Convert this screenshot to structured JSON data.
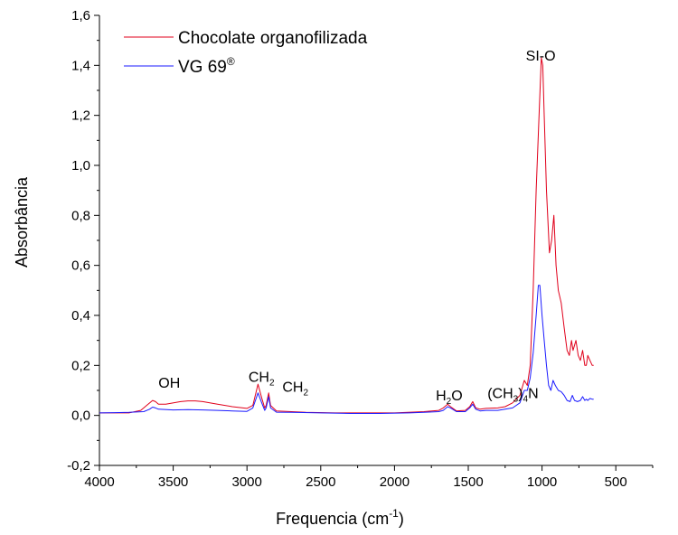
{
  "chart_data": {
    "type": "line",
    "xlabel": "Frequencia (cm",
    "xlabel_sup": "-1",
    "xlabel_close": ")",
    "ylabel": "Absorbância",
    "xlim": [
      4000,
      250
    ],
    "ylim": [
      -0.2,
      1.6
    ],
    "x_axis_reversed": true,
    "x_ticks": [
      4000,
      3500,
      3000,
      2500,
      2000,
      1500,
      1000,
      500
    ],
    "x_tick_labels": [
      "4000",
      "3500",
      "3000",
      "2500",
      "2000",
      "1500",
      "1000",
      "500"
    ],
    "y_ticks": [
      -0.2,
      0.0,
      0.2,
      0.4,
      0.6,
      0.8,
      1.0,
      1.2,
      1.4,
      1.6
    ],
    "y_tick_labels": [
      "-0,2",
      "0,0",
      "0,2",
      "0,4",
      "0,6",
      "0,8",
      "1,0",
      "1,2",
      "1,4",
      "1,6"
    ],
    "grid": false,
    "legend_position": "top-left",
    "series": [
      {
        "name": "Chocolate organofilizada",
        "color": "#e0001b",
        "points": [
          [
            4000,
            0.01
          ],
          [
            3800,
            0.01
          ],
          [
            3720,
            0.02
          ],
          [
            3680,
            0.04
          ],
          [
            3640,
            0.06
          ],
          [
            3620,
            0.055
          ],
          [
            3600,
            0.045
          ],
          [
            3550,
            0.045
          ],
          [
            3450,
            0.055
          ],
          [
            3400,
            0.058
          ],
          [
            3350,
            0.058
          ],
          [
            3300,
            0.055
          ],
          [
            3200,
            0.045
          ],
          [
            3100,
            0.035
          ],
          [
            3000,
            0.028
          ],
          [
            2960,
            0.04
          ],
          [
            2925,
            0.125
          ],
          [
            2900,
            0.07
          ],
          [
            2880,
            0.03
          ],
          [
            2870,
            0.04
          ],
          [
            2853,
            0.09
          ],
          [
            2840,
            0.04
          ],
          [
            2800,
            0.018
          ],
          [
            2700,
            0.015
          ],
          [
            2600,
            0.012
          ],
          [
            2400,
            0.01
          ],
          [
            2200,
            0.01
          ],
          [
            2000,
            0.01
          ],
          [
            1800,
            0.015
          ],
          [
            1700,
            0.02
          ],
          [
            1670,
            0.03
          ],
          [
            1640,
            0.045
          ],
          [
            1620,
            0.035
          ],
          [
            1580,
            0.018
          ],
          [
            1520,
            0.02
          ],
          [
            1490,
            0.035
          ],
          [
            1470,
            0.055
          ],
          [
            1450,
            0.03
          ],
          [
            1420,
            0.025
          ],
          [
            1380,
            0.028
          ],
          [
            1300,
            0.03
          ],
          [
            1250,
            0.035
          ],
          [
            1200,
            0.05
          ],
          [
            1150,
            0.08
          ],
          [
            1120,
            0.14
          ],
          [
            1100,
            0.12
          ],
          [
            1080,
            0.2
          ],
          [
            1060,
            0.5
          ],
          [
            1040,
            0.9
          ],
          [
            1020,
            1.2
          ],
          [
            1005,
            1.43
          ],
          [
            995,
            1.4
          ],
          [
            985,
            1.2
          ],
          [
            970,
            0.9
          ],
          [
            950,
            0.65
          ],
          [
            935,
            0.7
          ],
          [
            920,
            0.8
          ],
          [
            905,
            0.6
          ],
          [
            890,
            0.5
          ],
          [
            870,
            0.45
          ],
          [
            850,
            0.35
          ],
          [
            830,
            0.26
          ],
          [
            815,
            0.24
          ],
          [
            800,
            0.3
          ],
          [
            790,
            0.26
          ],
          [
            770,
            0.3
          ],
          [
            755,
            0.24
          ],
          [
            740,
            0.22
          ],
          [
            725,
            0.26
          ],
          [
            710,
            0.2
          ],
          [
            700,
            0.2
          ],
          [
            690,
            0.24
          ],
          [
            675,
            0.22
          ],
          [
            660,
            0.2
          ],
          [
            650,
            0.2
          ]
        ]
      },
      {
        "name": "VG 69®",
        "name_base": "VG 69",
        "name_sup": "®",
        "color": "#1a1aff",
        "points": [
          [
            4000,
            0.01
          ],
          [
            3800,
            0.012
          ],
          [
            3700,
            0.015
          ],
          [
            3660,
            0.025
          ],
          [
            3640,
            0.033
          ],
          [
            3620,
            0.03
          ],
          [
            3600,
            0.025
          ],
          [
            3500,
            0.022
          ],
          [
            3400,
            0.023
          ],
          [
            3300,
            0.022
          ],
          [
            3200,
            0.02
          ],
          [
            3100,
            0.018
          ],
          [
            3000,
            0.016
          ],
          [
            2960,
            0.03
          ],
          [
            2925,
            0.09
          ],
          [
            2900,
            0.05
          ],
          [
            2880,
            0.02
          ],
          [
            2870,
            0.03
          ],
          [
            2853,
            0.075
          ],
          [
            2840,
            0.03
          ],
          [
            2800,
            0.013
          ],
          [
            2700,
            0.012
          ],
          [
            2500,
            0.01
          ],
          [
            2300,
            0.008
          ],
          [
            2100,
            0.008
          ],
          [
            1900,
            0.01
          ],
          [
            1800,
            0.012
          ],
          [
            1700,
            0.015
          ],
          [
            1670,
            0.02
          ],
          [
            1640,
            0.035
          ],
          [
            1620,
            0.03
          ],
          [
            1580,
            0.015
          ],
          [
            1520,
            0.015
          ],
          [
            1490,
            0.03
          ],
          [
            1470,
            0.045
          ],
          [
            1450,
            0.025
          ],
          [
            1420,
            0.018
          ],
          [
            1380,
            0.02
          ],
          [
            1300,
            0.02
          ],
          [
            1250,
            0.025
          ],
          [
            1200,
            0.03
          ],
          [
            1150,
            0.05
          ],
          [
            1120,
            0.1
          ],
          [
            1100,
            0.1
          ],
          [
            1080,
            0.15
          ],
          [
            1060,
            0.25
          ],
          [
            1040,
            0.4
          ],
          [
            1025,
            0.52
          ],
          [
            1015,
            0.52
          ],
          [
            1000,
            0.4
          ],
          [
            985,
            0.3
          ],
          [
            970,
            0.2
          ],
          [
            955,
            0.12
          ],
          [
            940,
            0.1
          ],
          [
            925,
            0.14
          ],
          [
            910,
            0.12
          ],
          [
            890,
            0.1
          ],
          [
            870,
            0.095
          ],
          [
            850,
            0.08
          ],
          [
            830,
            0.06
          ],
          [
            810,
            0.055
          ],
          [
            795,
            0.08
          ],
          [
            780,
            0.06
          ],
          [
            760,
            0.055
          ],
          [
            740,
            0.06
          ],
          [
            725,
            0.075
          ],
          [
            710,
            0.06
          ],
          [
            700,
            0.065
          ],
          [
            690,
            0.06
          ],
          [
            675,
            0.068
          ],
          [
            660,
            0.065
          ],
          [
            650,
            0.065
          ]
        ]
      }
    ],
    "annotations": [
      {
        "key": "oh",
        "text": "OH",
        "x": 3600,
        "y": 0.11
      },
      {
        "key": "ch2a",
        "text": "CH",
        "sub": "2",
        "x": 2990,
        "y": 0.135
      },
      {
        "key": "ch2b",
        "text": "CH",
        "sub": "2",
        "x": 2760,
        "y": 0.095
      },
      {
        "key": "h2o",
        "text": "H",
        "sub": "2",
        "after": "O",
        "x": 1720,
        "y": 0.06
      },
      {
        "key": "ch3n",
        "text": "(CH",
        "sub": "3",
        "mid": ")",
        "sub2": "4",
        "after": "N",
        "x": 1370,
        "y": 0.07
      },
      {
        "key": "sio",
        "text": "SI-O",
        "x": 1110,
        "y": 1.42
      }
    ]
  }
}
